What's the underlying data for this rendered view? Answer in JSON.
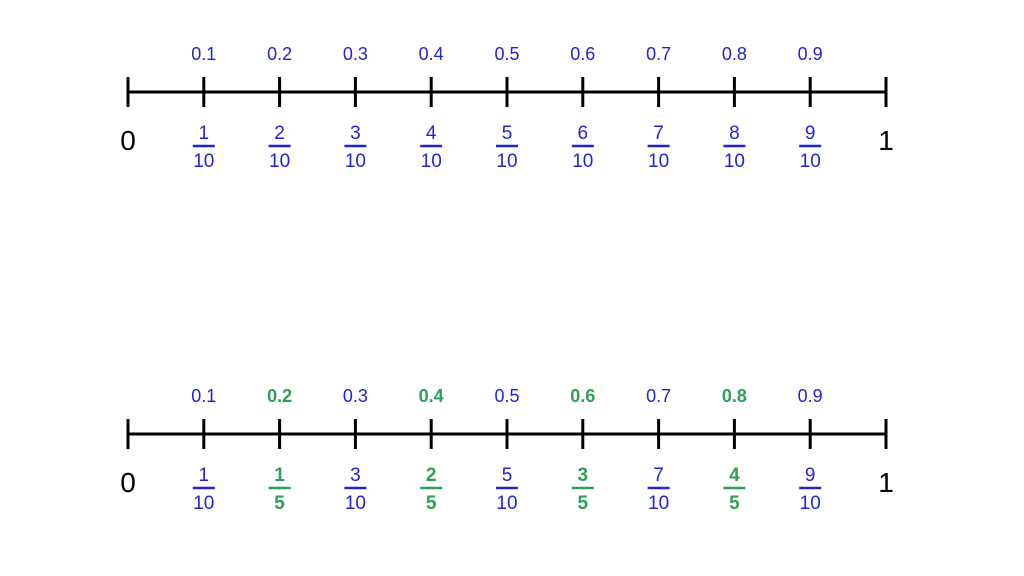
{
  "colors": {
    "line": "#000000",
    "blue": "#2323d6",
    "green": "#2e9e5b"
  },
  "number_lines": [
    {
      "start_label": "0",
      "end_label": "1",
      "ticks": [
        {
          "value": 0.1,
          "decimal": "0.1",
          "numerator": "1",
          "denominator": "10",
          "color": "blue"
        },
        {
          "value": 0.2,
          "decimal": "0.2",
          "numerator": "2",
          "denominator": "10",
          "color": "blue"
        },
        {
          "value": 0.3,
          "decimal": "0.3",
          "numerator": "3",
          "denominator": "10",
          "color": "blue"
        },
        {
          "value": 0.4,
          "decimal": "0.4",
          "numerator": "4",
          "denominator": "10",
          "color": "blue"
        },
        {
          "value": 0.5,
          "decimal": "0.5",
          "numerator": "5",
          "denominator": "10",
          "color": "blue"
        },
        {
          "value": 0.6,
          "decimal": "0.6",
          "numerator": "6",
          "denominator": "10",
          "color": "blue"
        },
        {
          "value": 0.7,
          "decimal": "0.7",
          "numerator": "7",
          "denominator": "10",
          "color": "blue"
        },
        {
          "value": 0.8,
          "decimal": "0.8",
          "numerator": "8",
          "denominator": "10",
          "color": "blue"
        },
        {
          "value": 0.9,
          "decimal": "0.9",
          "numerator": "9",
          "denominator": "10",
          "color": "blue"
        }
      ]
    },
    {
      "start_label": "0",
      "end_label": "1",
      "ticks": [
        {
          "value": 0.1,
          "decimal": "0.1",
          "numerator": "1",
          "denominator": "10",
          "color": "blue"
        },
        {
          "value": 0.2,
          "decimal": "0.2",
          "numerator": "1",
          "denominator": "5",
          "color": "green"
        },
        {
          "value": 0.3,
          "decimal": "0.3",
          "numerator": "3",
          "denominator": "10",
          "color": "blue"
        },
        {
          "value": 0.4,
          "decimal": "0.4",
          "numerator": "2",
          "denominator": "5",
          "color": "green"
        },
        {
          "value": 0.5,
          "decimal": "0.5",
          "numerator": "5",
          "denominator": "10",
          "color": "blue"
        },
        {
          "value": 0.6,
          "decimal": "0.6",
          "numerator": "3",
          "denominator": "5",
          "color": "green"
        },
        {
          "value": 0.7,
          "decimal": "0.7",
          "numerator": "7",
          "denominator": "10",
          "color": "blue"
        },
        {
          "value": 0.8,
          "decimal": "0.8",
          "numerator": "4",
          "denominator": "5",
          "color": "green"
        },
        {
          "value": 0.9,
          "decimal": "0.9",
          "numerator": "9",
          "denominator": "10",
          "color": "blue"
        }
      ]
    }
  ]
}
